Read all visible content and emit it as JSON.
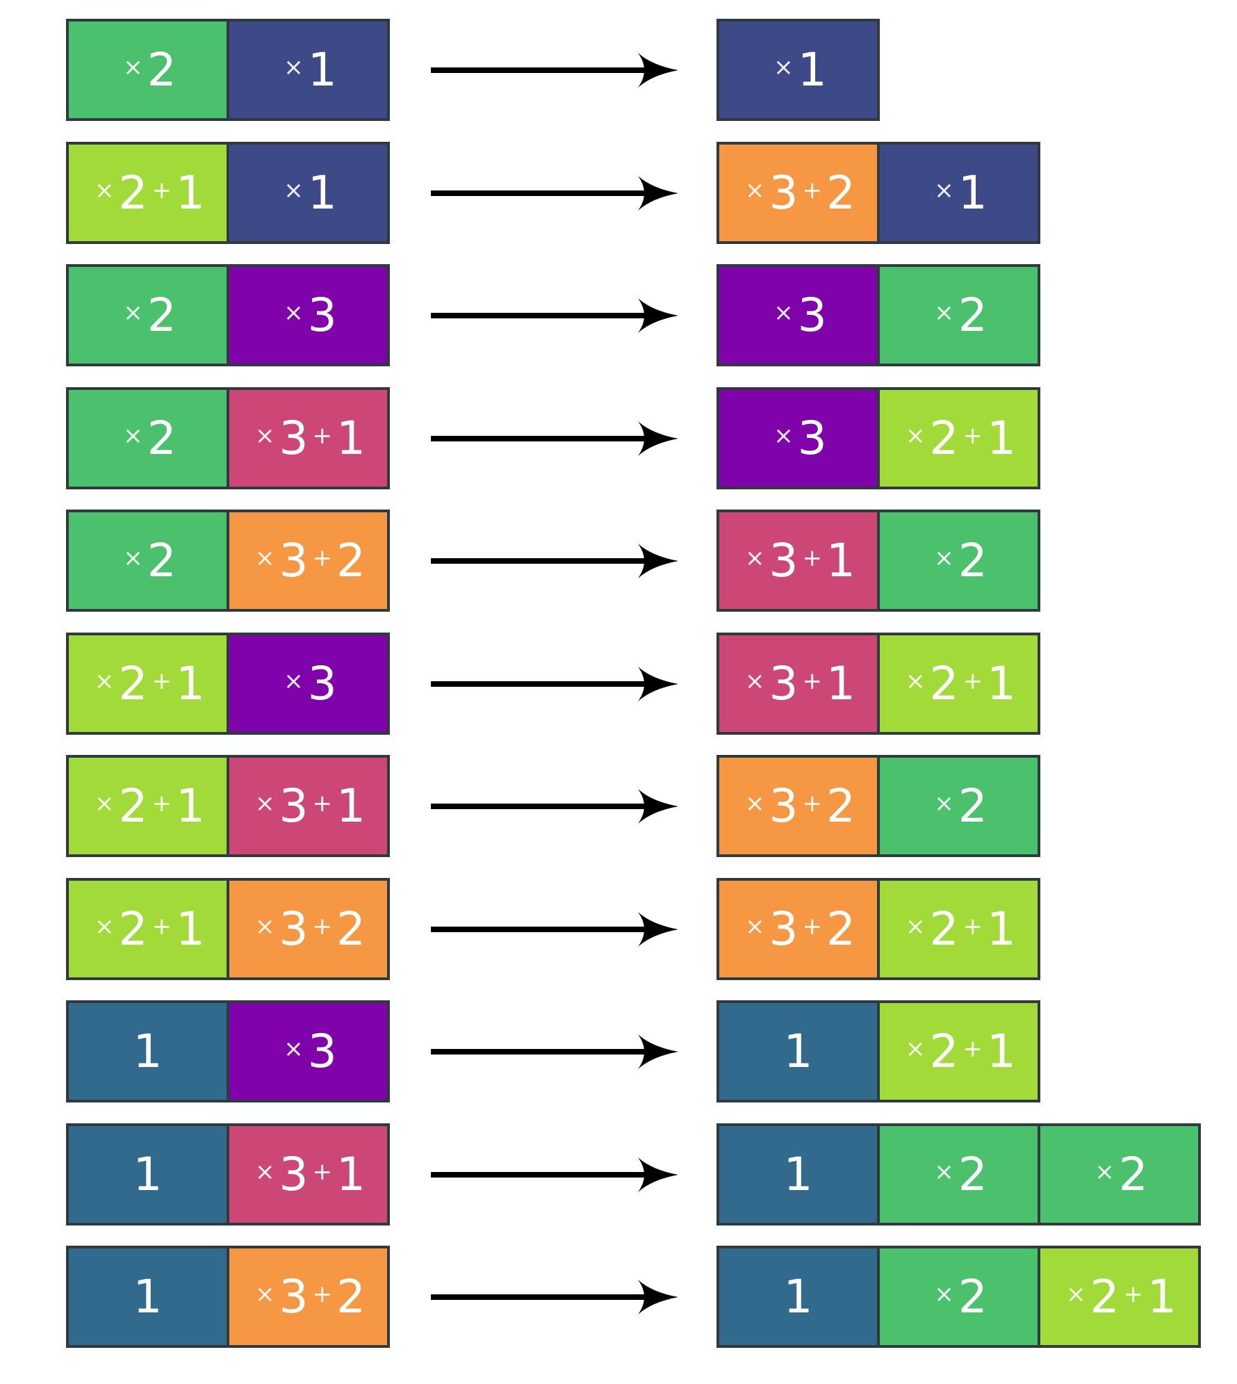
{
  "colors": {
    "x2": "#4bc06d",
    "x2p1": "#a1da39",
    "x1": "#3d4a87",
    "x3": "#7f02ab",
    "x3p1": "#cd4776",
    "x3p2": "#f69743",
    "one": "#326a8d",
    "border": "#2f3a3f",
    "arrow": "#000000",
    "text": "#ffffff"
  },
  "rows": [
    {
      "left": [
        {
          "type": "x2",
          "parts": [
            "×",
            "2"
          ]
        },
        {
          "type": "x1",
          "parts": [
            "×",
            "1"
          ]
        }
      ],
      "right": [
        {
          "type": "x1",
          "parts": [
            "×",
            "1"
          ]
        }
      ]
    },
    {
      "left": [
        {
          "type": "x2p1",
          "parts": [
            "×",
            "2",
            "+",
            "1"
          ]
        },
        {
          "type": "x1",
          "parts": [
            "×",
            "1"
          ]
        }
      ],
      "right": [
        {
          "type": "x3p2",
          "parts": [
            "×",
            "3",
            "+",
            "2"
          ]
        },
        {
          "type": "x1",
          "parts": [
            "×",
            "1"
          ]
        }
      ]
    },
    {
      "left": [
        {
          "type": "x2",
          "parts": [
            "×",
            "2"
          ]
        },
        {
          "type": "x3",
          "parts": [
            "×",
            "3"
          ]
        }
      ],
      "right": [
        {
          "type": "x3",
          "parts": [
            "×",
            "3"
          ]
        },
        {
          "type": "x2",
          "parts": [
            "×",
            "2"
          ]
        }
      ]
    },
    {
      "left": [
        {
          "type": "x2",
          "parts": [
            "×",
            "2"
          ]
        },
        {
          "type": "x3p1",
          "parts": [
            "×",
            "3",
            "+",
            "1"
          ]
        }
      ],
      "right": [
        {
          "type": "x3",
          "parts": [
            "×",
            "3"
          ]
        },
        {
          "type": "x2p1",
          "parts": [
            "×",
            "2",
            "+",
            "1"
          ]
        }
      ]
    },
    {
      "left": [
        {
          "type": "x2",
          "parts": [
            "×",
            "2"
          ]
        },
        {
          "type": "x3p2",
          "parts": [
            "×",
            "3",
            "+",
            "2"
          ]
        }
      ],
      "right": [
        {
          "type": "x3p1",
          "parts": [
            "×",
            "3",
            "+",
            "1"
          ]
        },
        {
          "type": "x2",
          "parts": [
            "×",
            "2"
          ]
        }
      ]
    },
    {
      "left": [
        {
          "type": "x2p1",
          "parts": [
            "×",
            "2",
            "+",
            "1"
          ]
        },
        {
          "type": "x3",
          "parts": [
            "×",
            "3"
          ]
        }
      ],
      "right": [
        {
          "type": "x3p1",
          "parts": [
            "×",
            "3",
            "+",
            "1"
          ]
        },
        {
          "type": "x2p1",
          "parts": [
            "×",
            "2",
            "+",
            "1"
          ]
        }
      ]
    },
    {
      "left": [
        {
          "type": "x2p1",
          "parts": [
            "×",
            "2",
            "+",
            "1"
          ]
        },
        {
          "type": "x3p1",
          "parts": [
            "×",
            "3",
            "+",
            "1"
          ]
        }
      ],
      "right": [
        {
          "type": "x3p2",
          "parts": [
            "×",
            "3",
            "+",
            "2"
          ]
        },
        {
          "type": "x2",
          "parts": [
            "×",
            "2"
          ]
        }
      ]
    },
    {
      "left": [
        {
          "type": "x2p1",
          "parts": [
            "×",
            "2",
            "+",
            "1"
          ]
        },
        {
          "type": "x3p2",
          "parts": [
            "×",
            "3",
            "+",
            "2"
          ]
        }
      ],
      "right": [
        {
          "type": "x3p2",
          "parts": [
            "×",
            "3",
            "+",
            "2"
          ]
        },
        {
          "type": "x2p1",
          "parts": [
            "×",
            "2",
            "+",
            "1"
          ]
        }
      ]
    },
    {
      "left": [
        {
          "type": "one",
          "parts": [
            "1"
          ]
        },
        {
          "type": "x3",
          "parts": [
            "×",
            "3"
          ]
        }
      ],
      "right": [
        {
          "type": "one",
          "parts": [
            "1"
          ]
        },
        {
          "type": "x2p1",
          "parts": [
            "×",
            "2",
            "+",
            "1"
          ]
        }
      ]
    },
    {
      "left": [
        {
          "type": "one",
          "parts": [
            "1"
          ]
        },
        {
          "type": "x3p1",
          "parts": [
            "×",
            "3",
            "+",
            "1"
          ]
        }
      ],
      "right": [
        {
          "type": "one",
          "parts": [
            "1"
          ]
        },
        {
          "type": "x2",
          "parts": [
            "×",
            "2"
          ]
        },
        {
          "type": "x2",
          "parts": [
            "×",
            "2"
          ]
        }
      ]
    },
    {
      "left": [
        {
          "type": "one",
          "parts": [
            "1"
          ]
        },
        {
          "type": "x3p2",
          "parts": [
            "×",
            "3",
            "+",
            "2"
          ]
        }
      ],
      "right": [
        {
          "type": "one",
          "parts": [
            "1"
          ]
        },
        {
          "type": "x2",
          "parts": [
            "×",
            "2"
          ]
        },
        {
          "type": "x2p1",
          "parts": [
            "×",
            "2",
            "+",
            "1"
          ]
        }
      ]
    }
  ]
}
